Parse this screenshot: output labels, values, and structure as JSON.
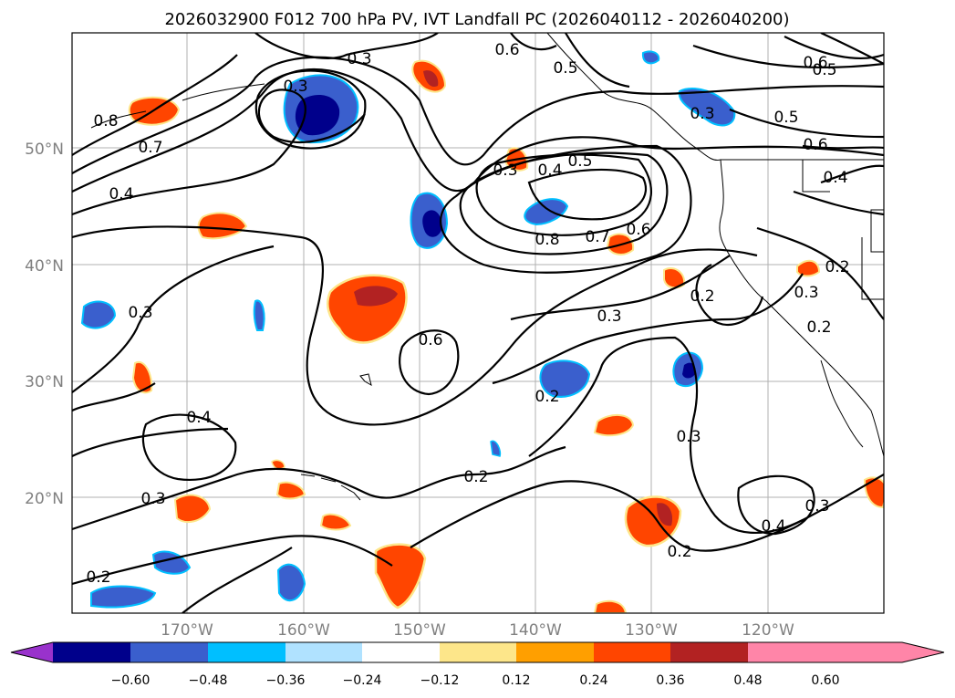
{
  "title": "2026032900 F012 700 hPa PV, IVT Landfall PC (2026040112 - 2026040200)",
  "map": {
    "lat_labels": [
      "50°N",
      "40°N",
      "30°N",
      "20°N"
    ],
    "lon_labels": [
      "170°W",
      "160°W",
      "150°W",
      "140°W",
      "130°W",
      "120°W"
    ],
    "contour_labels": [
      "0.6",
      "0.5",
      "0.8",
      "0.7",
      "0.4",
      "0.3",
      "0.5",
      "0.4",
      "0.8",
      "0.7",
      "0.6",
      "0.3",
      "0.6",
      "0.2",
      "0.4",
      "0.3",
      "0.2",
      "0.3",
      "0.2",
      "0.3",
      "0.4",
      "0.2",
      "0.3",
      "0.2",
      "0.6",
      "0.5",
      "0.6",
      "0.5",
      "0.4",
      "0.3",
      "0.2",
      "0.3",
      "0.2",
      "0.3",
      "0.3"
    ]
  },
  "colorbar": {
    "ticks": [
      "−0.60",
      "−0.48",
      "−0.36",
      "−0.24",
      "−0.12",
      "0.12",
      "0.24",
      "0.36",
      "0.48",
      "0.60"
    ],
    "colors": [
      "#9932cc",
      "#00008b",
      "#3a5fcd",
      "#00bfff",
      "#b0e2ff",
      "#ffffff",
      "#fde68a",
      "#ff9f00",
      "#ff4500",
      "#b22222",
      "#ff85a8"
    ]
  }
}
